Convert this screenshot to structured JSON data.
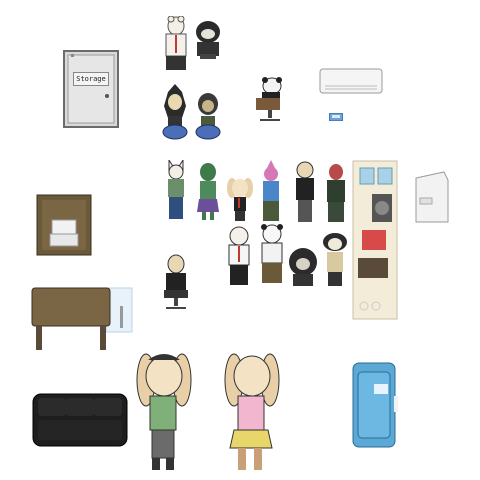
{
  "scene": {
    "background": "#ffffff",
    "storage_door": {
      "label": "Storage",
      "icon": "storage-door-icon"
    }
  },
  "colors": {
    "metal_gray": "#cfcfcf",
    "wood_brown": "#7a6545",
    "blue_machine": "#5aa9d6",
    "dark_fur": "#2b2b2b",
    "bunny_fur": "#e8cfa8"
  }
}
